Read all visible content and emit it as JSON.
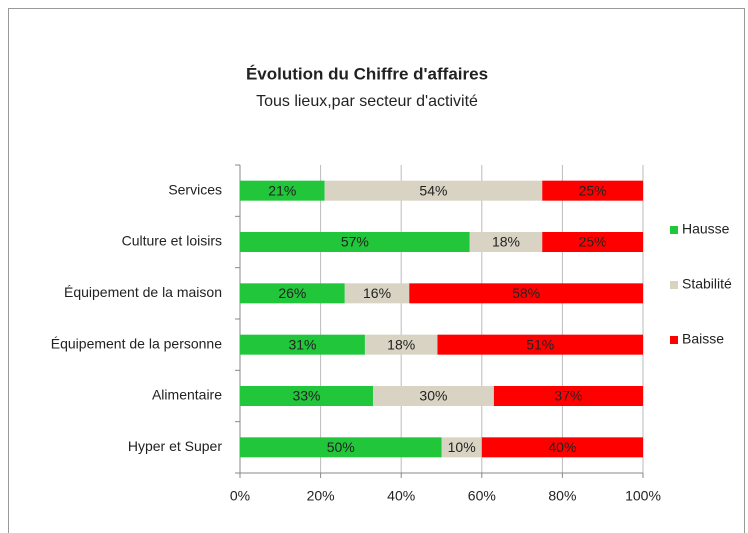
{
  "chart_data": {
    "type": "stacked_barh",
    "title": "Évolution du Chiffre d'affaires",
    "subtitle": "Tous lieux,par secteur d'activité",
    "categories": [
      "Services",
      "Culture et loisirs",
      "Équipement de la maison",
      "Équipement de la personne",
      "Alimentaire",
      "Hyper et Super"
    ],
    "series": [
      {
        "name": "Hausse",
        "color": "#21c63b",
        "values": [
          21,
          57,
          26,
          31,
          33,
          50
        ],
        "value_labels": [
          "21%",
          "57%",
          "26%",
          "31%",
          "33%",
          "50%"
        ]
      },
      {
        "name": "Stabilité",
        "color": "#d8d3c3",
        "values": [
          54,
          18,
          16,
          18,
          30,
          10
        ],
        "value_labels": [
          "54%",
          "18%",
          "16%",
          "18%",
          "30%",
          "10%"
        ]
      },
      {
        "name": "Baisse",
        "color": "#ff0000",
        "values": [
          25,
          25,
          58,
          51,
          37,
          40
        ],
        "value_labels": [
          "25%",
          "25%",
          "58%",
          "51%",
          "37%",
          "40%"
        ]
      }
    ],
    "xlim": [
      0,
      100
    ],
    "xticks": [
      {
        "value": 0,
        "label": "0%"
      },
      {
        "value": 20,
        "label": "20%"
      },
      {
        "value": 40,
        "label": "40%"
      },
      {
        "value": 60,
        "label": "60%"
      },
      {
        "value": 80,
        "label": "80%"
      },
      {
        "value": 100,
        "label": "100%"
      }
    ],
    "grid": true,
    "legend": "right"
  }
}
